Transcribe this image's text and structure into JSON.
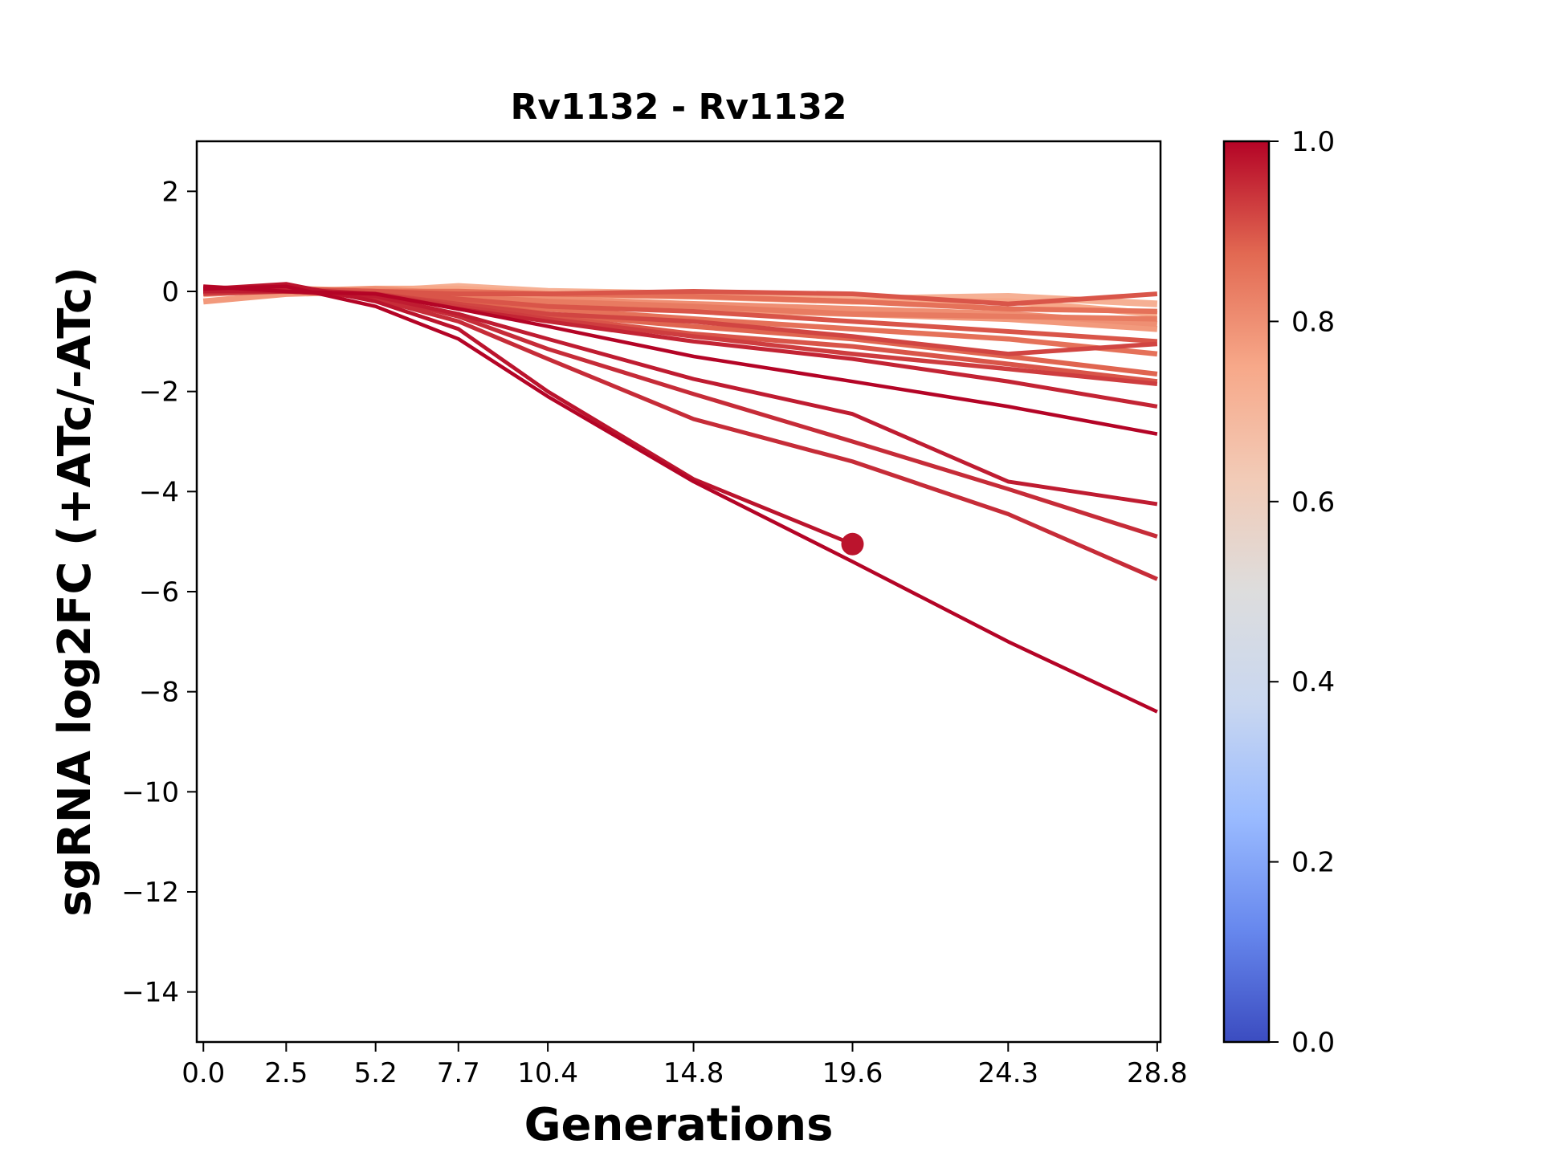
{
  "chart_data": {
    "type": "line",
    "title": "Rv1132 - Rv1132",
    "xlabel": "Generations",
    "ylabel": "sgRNA log2FC (+ATc/-ATc)",
    "x": [
      0.0,
      2.5,
      5.2,
      7.7,
      10.4,
      14.8,
      19.6,
      24.3,
      28.8
    ],
    "x_tick_labels": [
      "0.0",
      "2.5",
      "5.2",
      "7.7",
      "10.4",
      "14.8",
      "19.6",
      "24.3",
      "28.8"
    ],
    "xlim": [
      -0.2,
      28.9
    ],
    "ylim": [
      -15,
      3
    ],
    "y_ticks": [
      2,
      0,
      -2,
      -4,
      -6,
      -8,
      -10,
      -12,
      -14
    ],
    "y_tick_labels": [
      "2",
      "0",
      "−2",
      "−4",
      "−6",
      "−8",
      "−10",
      "−12",
      "−14"
    ],
    "grid": false,
    "colorbar": {
      "range": [
        0.0,
        1.0
      ],
      "ticks": [
        0.0,
        0.2,
        0.4,
        0.6,
        0.8,
        1.0
      ],
      "tick_labels": [
        "0.0",
        "0.2",
        "0.4",
        "0.6",
        "0.8",
        "1.0"
      ],
      "colormap": "coolwarm",
      "stops": [
        "#3b4cc0",
        "#6788ee",
        "#9abbff",
        "#c9d7f0",
        "#dddddd",
        "#f2cbb7",
        "#f7a889",
        "#e26952",
        "#b40426"
      ]
    },
    "series": [
      {
        "c": 1.0,
        "values": [
          0.05,
          0.1,
          -0.3,
          -0.95,
          -2.1,
          -3.8,
          -5.4,
          -7.0,
          -8.4
        ]
      },
      {
        "c": 0.98,
        "values": [
          0.05,
          0.15,
          -0.2,
          -0.75,
          -2.0,
          -3.75,
          -5.05,
          null,
          null
        ]
      },
      {
        "c": 0.95,
        "values": [
          0.0,
          0.05,
          -0.15,
          -0.6,
          -1.35,
          -2.55,
          -3.4,
          -4.45,
          -5.75
        ]
      },
      {
        "c": 0.95,
        "values": [
          0.1,
          0.0,
          -0.1,
          -0.5,
          -1.15,
          -2.05,
          -3.0,
          -3.95,
          -4.9
        ]
      },
      {
        "c": 0.97,
        "values": [
          0.0,
          0.0,
          -0.1,
          -0.45,
          -0.95,
          -1.75,
          -2.45,
          -3.8,
          -4.25
        ]
      },
      {
        "c": 1.0,
        "values": [
          0.1,
          0.0,
          -0.05,
          -0.35,
          -0.7,
          -1.3,
          -1.8,
          -2.3,
          -2.85
        ]
      },
      {
        "c": 0.96,
        "values": [
          0.0,
          0.05,
          -0.05,
          -0.35,
          -0.6,
          -1.0,
          -1.35,
          -1.8,
          -2.3
        ]
      },
      {
        "c": 0.93,
        "values": [
          -0.05,
          0.0,
          -0.05,
          -0.3,
          -0.55,
          -0.9,
          -1.25,
          -1.55,
          -1.85
        ]
      },
      {
        "c": 0.9,
        "values": [
          0.0,
          0.05,
          0.0,
          -0.25,
          -0.5,
          -0.85,
          -1.1,
          -1.45,
          -1.8
        ]
      },
      {
        "c": 0.88,
        "values": [
          0.0,
          0.05,
          0.0,
          -0.2,
          -0.45,
          -0.7,
          -0.95,
          -1.3,
          -1.65
        ]
      },
      {
        "c": 0.92,
        "values": [
          0.05,
          0.0,
          -0.05,
          -0.25,
          -0.45,
          -0.6,
          -0.9,
          -1.25,
          -1.05
        ]
      },
      {
        "c": 0.86,
        "values": [
          0.0,
          0.05,
          -0.05,
          -0.2,
          -0.35,
          -0.55,
          -0.75,
          -0.95,
          -1.25
        ]
      },
      {
        "c": 0.9,
        "values": [
          0.0,
          0.05,
          0.0,
          -0.15,
          -0.3,
          -0.4,
          -0.6,
          -0.8,
          -1.0
        ]
      },
      {
        "c": 0.78,
        "values": [
          -0.2,
          -0.05,
          0.0,
          -0.1,
          -0.25,
          -0.35,
          -0.45,
          -0.55,
          -0.75
        ]
      },
      {
        "c": 0.84,
        "values": [
          0.0,
          0.05,
          0.0,
          -0.1,
          -0.2,
          -0.3,
          -0.45,
          -0.5,
          -0.55
        ]
      },
      {
        "c": 0.8,
        "values": [
          0.0,
          0.0,
          0.05,
          -0.05,
          -0.15,
          -0.25,
          -0.35,
          -0.45,
          -0.65
        ]
      },
      {
        "c": 0.75,
        "values": [
          0.05,
          0.0,
          0.05,
          0.05,
          -0.05,
          -0.1,
          -0.2,
          -0.2,
          -0.45
        ]
      },
      {
        "c": 0.72,
        "values": [
          -0.05,
          0.05,
          0.0,
          0.1,
          0.0,
          -0.05,
          -0.15,
          -0.1,
          -0.25
        ]
      },
      {
        "c": 0.86,
        "values": [
          0.05,
          0.0,
          0.0,
          0.0,
          -0.05,
          -0.1,
          -0.2,
          -0.35,
          -0.4
        ]
      },
      {
        "c": 0.9,
        "values": [
          0.0,
          0.05,
          0.0,
          -0.05,
          -0.05,
          0.0,
          -0.05,
          -0.25,
          -0.05
        ]
      }
    ],
    "marker": {
      "x": 19.6,
      "y": -5.05,
      "c": 0.98
    }
  }
}
